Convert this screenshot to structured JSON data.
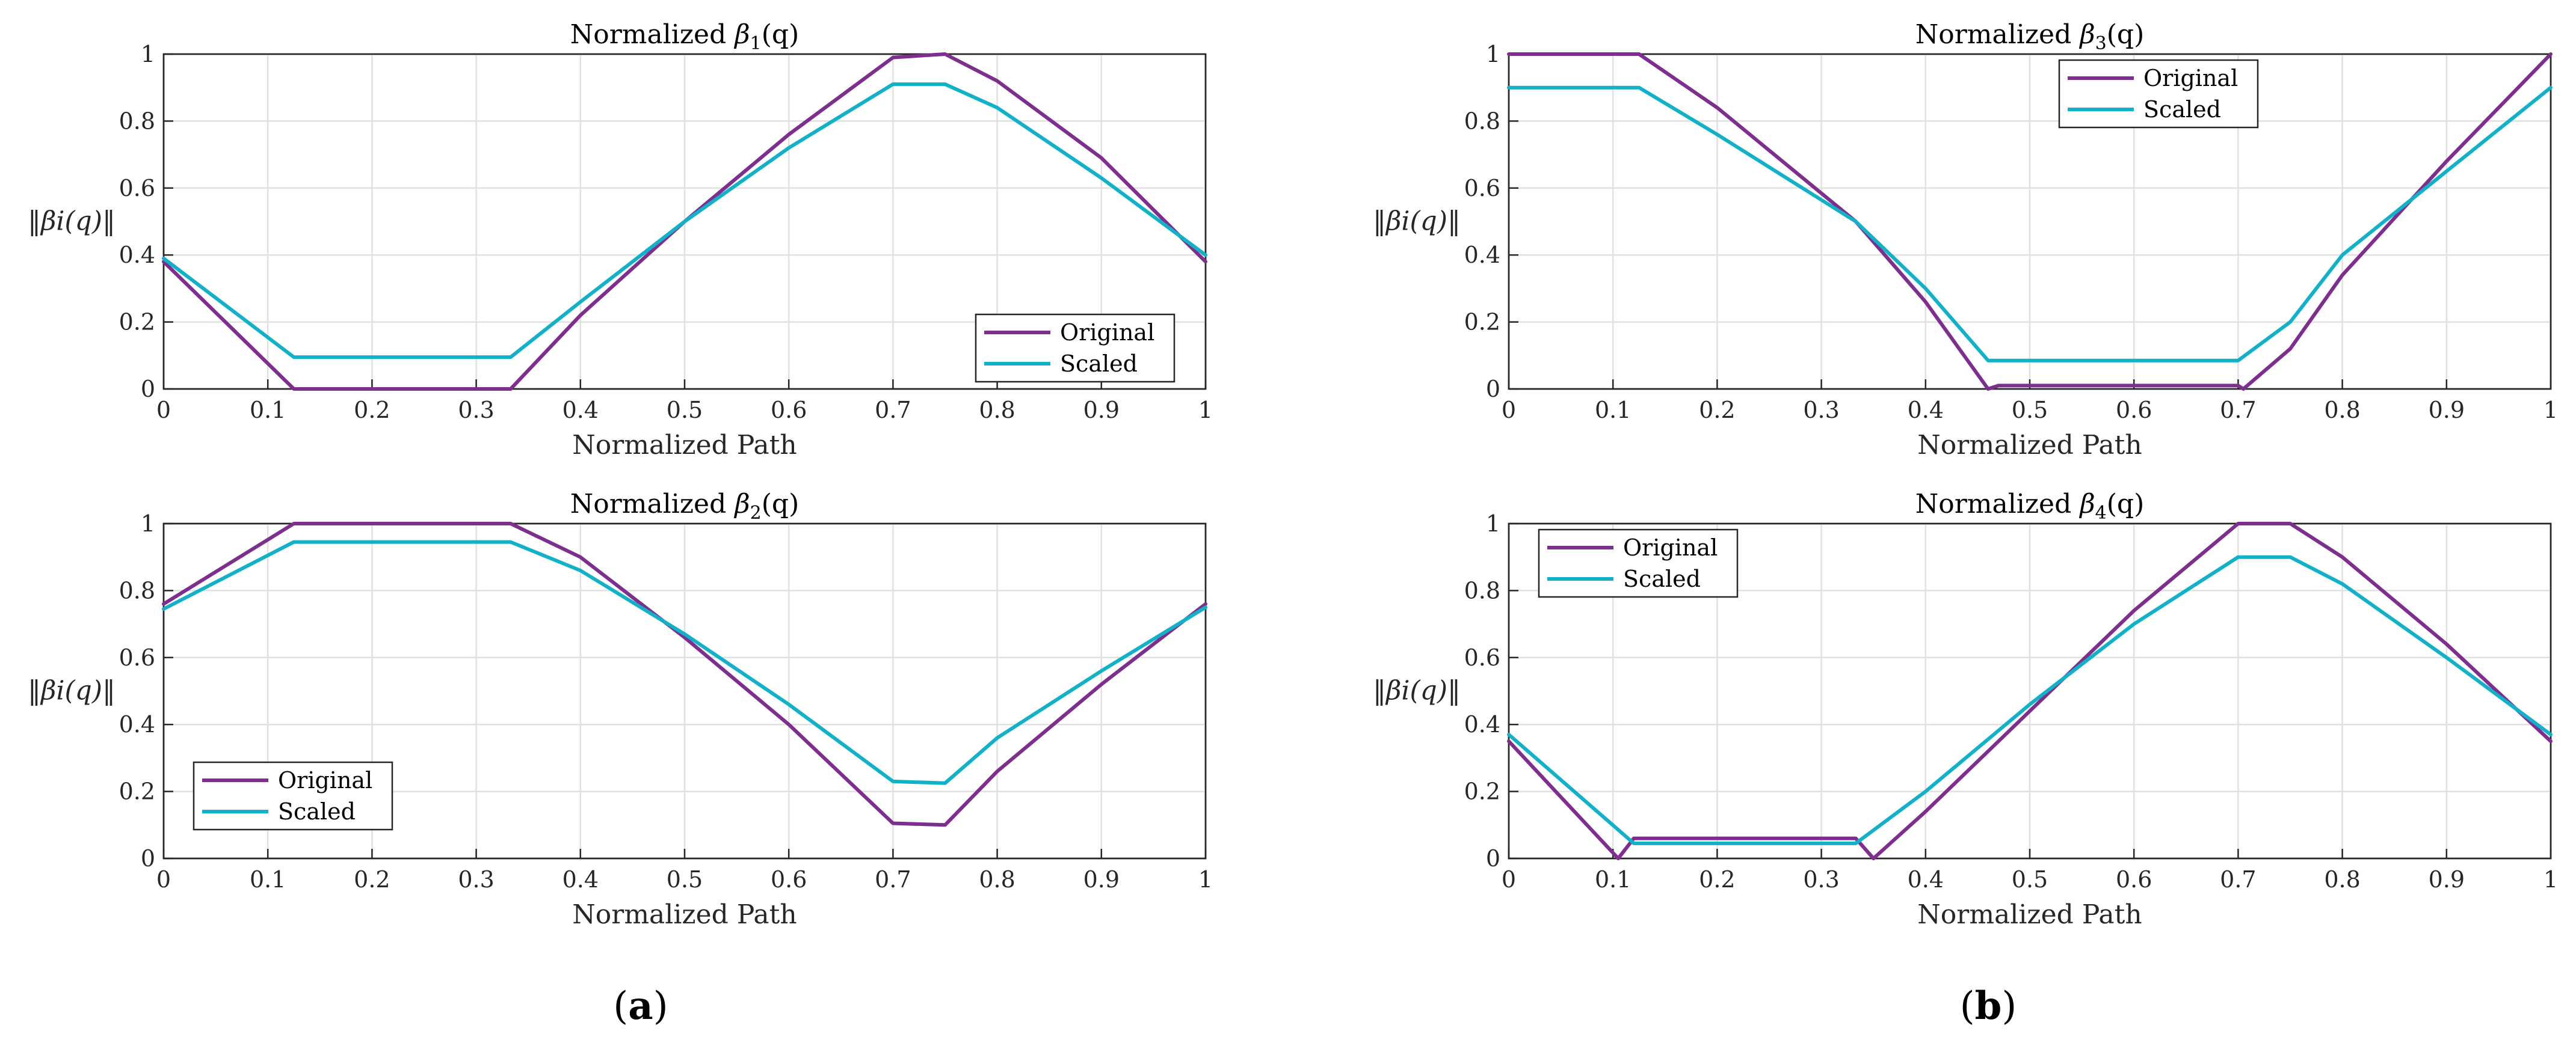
{
  "colors": {
    "original": "#7E2F8E",
    "scaled": "#12B1C8"
  },
  "panel_labels": [
    "(a)",
    "(b)"
  ],
  "chart_data": [
    {
      "type": "line",
      "title_prefix": "Normalized ",
      "title_math": "β1(q)",
      "title_base": "β",
      "title_sub": "1",
      "title_suffix": "(q)",
      "xlabel": "Normalized Path",
      "ylabel": "‖βi(q)‖",
      "xlim": [
        0,
        1
      ],
      "ylim": [
        0,
        1
      ],
      "xticks": [
        "0",
        "0.1",
        "0.2",
        "0.3",
        "0.4",
        "0.5",
        "0.6",
        "0.7",
        "0.8",
        "0.9",
        "1"
      ],
      "yticks": [
        "0",
        "0.2",
        "0.4",
        "0.6",
        "0.8",
        "1"
      ],
      "legend": {
        "location": "bottom-right",
        "entries": [
          "Original",
          "Scaled"
        ]
      },
      "series": [
        {
          "name": "Original",
          "x": [
            0,
            0.125,
            0.2,
            0.333,
            0.4,
            0.5,
            0.6,
            0.7,
            0.75,
            0.8,
            0.9,
            1.0
          ],
          "y": [
            0.38,
            0.0,
            0.0,
            0.0,
            0.22,
            0.5,
            0.76,
            0.99,
            1.0,
            0.92,
            0.69,
            0.38
          ]
        },
        {
          "name": "Scaled",
          "x": [
            0,
            0.125,
            0.2,
            0.333,
            0.4,
            0.5,
            0.6,
            0.7,
            0.75,
            0.8,
            0.9,
            1.0
          ],
          "y": [
            0.39,
            0.095,
            0.095,
            0.095,
            0.26,
            0.5,
            0.72,
            0.91,
            0.91,
            0.84,
            0.63,
            0.4
          ]
        }
      ]
    },
    {
      "type": "line",
      "title_prefix": "Normalized ",
      "title_math": "β2(q)",
      "title_base": "β",
      "title_sub": "2",
      "title_suffix": "(q)",
      "xlabel": "Normalized Path",
      "ylabel": "‖βi(q)‖",
      "xlim": [
        0,
        1
      ],
      "ylim": [
        0,
        1
      ],
      "xticks": [
        "0",
        "0.1",
        "0.2",
        "0.3",
        "0.4",
        "0.5",
        "0.6",
        "0.7",
        "0.8",
        "0.9",
        "1"
      ],
      "yticks": [
        "0",
        "0.2",
        "0.4",
        "0.6",
        "0.8",
        "1"
      ],
      "legend": {
        "location": "bottom-left",
        "entries": [
          "Original",
          "Scaled"
        ]
      },
      "series": [
        {
          "name": "Original",
          "x": [
            0,
            0.125,
            0.2,
            0.333,
            0.4,
            0.5,
            0.6,
            0.7,
            0.75,
            0.8,
            0.9,
            1.0
          ],
          "y": [
            0.76,
            1.0,
            1.0,
            1.0,
            0.9,
            0.66,
            0.4,
            0.105,
            0.1,
            0.26,
            0.52,
            0.76
          ]
        },
        {
          "name": "Scaled",
          "x": [
            0,
            0.125,
            0.2,
            0.333,
            0.4,
            0.5,
            0.6,
            0.7,
            0.75,
            0.8,
            0.9,
            1.0
          ],
          "y": [
            0.745,
            0.945,
            0.945,
            0.945,
            0.86,
            0.67,
            0.46,
            0.23,
            0.225,
            0.36,
            0.56,
            0.75
          ]
        }
      ]
    },
    {
      "type": "line",
      "title_prefix": "Normalized ",
      "title_math": "β3(q)",
      "title_base": "β",
      "title_sub": "3",
      "title_suffix": "(q)",
      "xlabel": "Normalized Path",
      "ylabel": "‖βi(q)‖",
      "xlim": [
        0,
        1
      ],
      "ylim": [
        0,
        1
      ],
      "xticks": [
        "0",
        "0.1",
        "0.2",
        "0.3",
        "0.4",
        "0.5",
        "0.6",
        "0.7",
        "0.8",
        "0.9",
        "1"
      ],
      "yticks": [
        "0",
        "0.2",
        "0.4",
        "0.6",
        "0.8",
        "1"
      ],
      "legend": {
        "location": "top-center",
        "entries": [
          "Original",
          "Scaled"
        ]
      },
      "series": [
        {
          "name": "Original",
          "x": [
            0,
            0.125,
            0.2,
            0.333,
            0.4,
            0.46,
            0.47,
            0.6,
            0.7,
            0.705,
            0.75,
            0.8,
            0.9,
            1.0
          ],
          "y": [
            1.0,
            1.0,
            0.84,
            0.5,
            0.26,
            0.0,
            0.01,
            0.01,
            0.01,
            0.0,
            0.12,
            0.34,
            0.68,
            1.0
          ]
        },
        {
          "name": "Scaled",
          "x": [
            0,
            0.125,
            0.2,
            0.333,
            0.4,
            0.46,
            0.6,
            0.7,
            0.75,
            0.8,
            0.9,
            1.0
          ],
          "y": [
            0.9,
            0.9,
            0.76,
            0.5,
            0.3,
            0.085,
            0.085,
            0.085,
            0.2,
            0.4,
            0.65,
            0.9
          ]
        }
      ]
    },
    {
      "type": "line",
      "title_prefix": "Normalized ",
      "title_math": "β4(q)",
      "title_base": "β",
      "title_sub": "4",
      "title_suffix": "(q)",
      "xlabel": "Normalized Path",
      "ylabel": "‖βi(q)‖",
      "xlim": [
        0,
        1
      ],
      "ylim": [
        0,
        1
      ],
      "xticks": [
        "0",
        "0.1",
        "0.2",
        "0.3",
        "0.4",
        "0.5",
        "0.6",
        "0.7",
        "0.8",
        "0.9",
        "1"
      ],
      "yticks": [
        "0",
        "0.2",
        "0.4",
        "0.6",
        "0.8",
        "1"
      ],
      "legend": {
        "location": "top-left",
        "entries": [
          "Original",
          "Scaled"
        ]
      },
      "series": [
        {
          "name": "Original",
          "x": [
            0,
            0.105,
            0.12,
            0.2,
            0.333,
            0.35,
            0.4,
            0.5,
            0.6,
            0.7,
            0.75,
            0.8,
            0.9,
            1.0
          ],
          "y": [
            0.35,
            0.0,
            0.06,
            0.06,
            0.06,
            0.0,
            0.14,
            0.44,
            0.74,
            1.0,
            1.0,
            0.9,
            0.64,
            0.35
          ]
        },
        {
          "name": "Scaled",
          "x": [
            0,
            0.12,
            0.2,
            0.333,
            0.4,
            0.5,
            0.6,
            0.7,
            0.75,
            0.8,
            0.9,
            1.0
          ],
          "y": [
            0.37,
            0.045,
            0.045,
            0.045,
            0.2,
            0.46,
            0.7,
            0.9,
            0.9,
            0.82,
            0.6,
            0.37
          ]
        }
      ]
    }
  ]
}
